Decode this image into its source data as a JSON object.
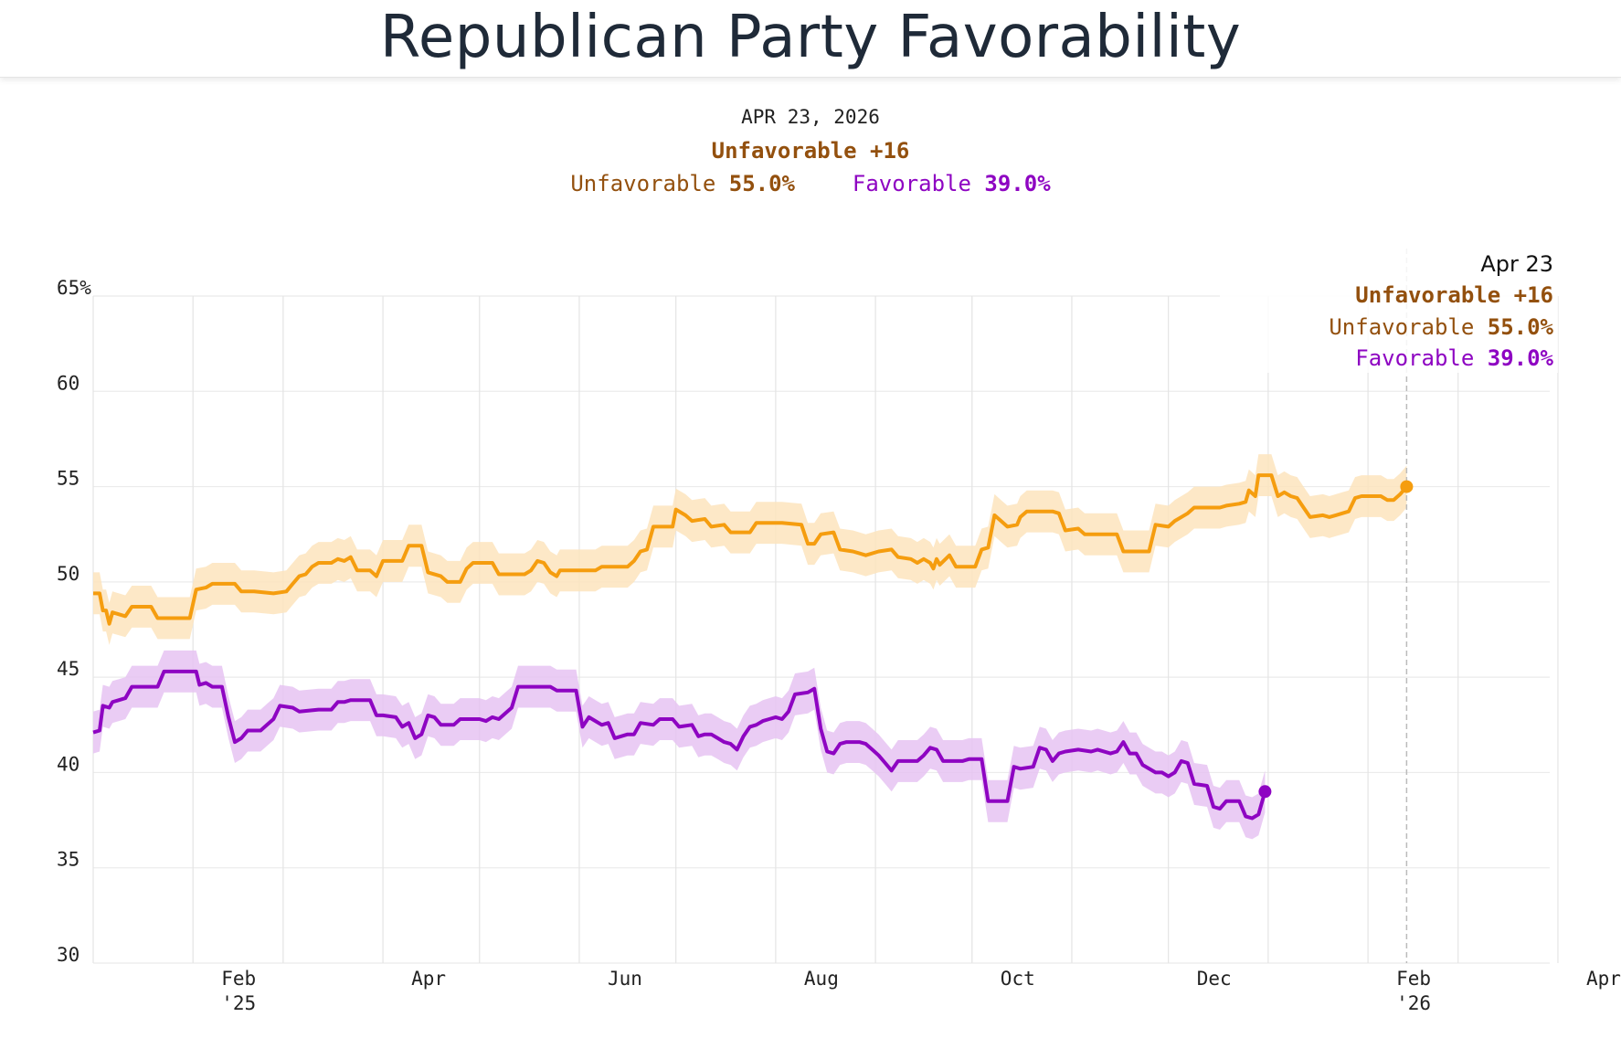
{
  "title": "Republican Party Favorability",
  "summary": {
    "date": "APR 23, 2026",
    "margin": "Unfavorable +16",
    "unfav_label": "Unfavorable",
    "unfav_value": "55.0%",
    "fav_label": "Favorable",
    "fav_value": "39.0%"
  },
  "tooltip": {
    "date": "Apr 23",
    "margin": "Unfavorable +16",
    "unfav_label": "Unfavorable",
    "unfav_value": "55.0%",
    "fav_label": "Favorable",
    "fav_value": "39.0%"
  },
  "colors": {
    "unfavorable": "#f59d0f",
    "unfavorable_band": "#fde4bd",
    "unfavorable_text": "#93500e",
    "favorable": "#8e05c2",
    "favorable_band": "#e6c3f2",
    "favorable_text": "#8e05c2"
  },
  "chart_data": {
    "type": "line",
    "title": "Republican Party Favorability",
    "ylim": [
      30,
      65
    ],
    "yticks": [
      30,
      35,
      40,
      45,
      50,
      55,
      60,
      65
    ],
    "ytick_labels": [
      "30",
      "35",
      "40",
      "45",
      "50",
      "55",
      "60",
      "65%"
    ],
    "x_start": "2025-01-01",
    "x_end": "2026-04-23",
    "month_ticks": [
      {
        "label": "Feb",
        "sub": "'25",
        "day": 31
      },
      {
        "label": "Apr",
        "sub": "",
        "day": 90
      },
      {
        "label": "Jun",
        "sub": "",
        "day": 151
      },
      {
        "label": "Aug",
        "sub": "",
        "day": 212
      },
      {
        "label": "Oct",
        "sub": "",
        "day": 273
      },
      {
        "label": "Dec",
        "sub": "",
        "day": 334
      },
      {
        "label": "Feb",
        "sub": "'26",
        "day": 396
      },
      {
        "label": "Apr",
        "sub": "",
        "day": 455
      }
    ],
    "grid_days": [
      0,
      31,
      59,
      90,
      120,
      151,
      181,
      212,
      243,
      273,
      304,
      334,
      365,
      396,
      424,
      455
    ],
    "band_halfwidth": 1.1,
    "series": [
      {
        "name": "Unfavorable",
        "points": [
          [
            0,
            49.4
          ],
          [
            2,
            49.4
          ],
          [
            3,
            48.5
          ],
          [
            4,
            48.5
          ],
          [
            5,
            47.8
          ],
          [
            6,
            48.4
          ],
          [
            8,
            48.3
          ],
          [
            10,
            48.2
          ],
          [
            12,
            48.7
          ],
          [
            18,
            48.7
          ],
          [
            20,
            48.1
          ],
          [
            30,
            48.1
          ],
          [
            32,
            49.6
          ],
          [
            35,
            49.7
          ],
          [
            37,
            49.9
          ],
          [
            44,
            49.9
          ],
          [
            46,
            49.5
          ],
          [
            50,
            49.5
          ],
          [
            56,
            49.4
          ],
          [
            60,
            49.5
          ],
          [
            62,
            49.9
          ],
          [
            64,
            50.3
          ],
          [
            66,
            50.4
          ],
          [
            68,
            50.8
          ],
          [
            70,
            51.0
          ],
          [
            72,
            51.0
          ],
          [
            74,
            51.0
          ],
          [
            76,
            51.2
          ],
          [
            78,
            51.1
          ],
          [
            80,
            51.3
          ],
          [
            82,
            50.6
          ],
          [
            86,
            50.6
          ],
          [
            88,
            50.3
          ],
          [
            90,
            51.1
          ],
          [
            96,
            51.1
          ],
          [
            98,
            51.9
          ],
          [
            102,
            51.9
          ],
          [
            104,
            50.5
          ],
          [
            108,
            50.3
          ],
          [
            110,
            50.0
          ],
          [
            114,
            50.0
          ],
          [
            116,
            50.7
          ],
          [
            118,
            51.0
          ],
          [
            124,
            51.0
          ],
          [
            126,
            50.4
          ],
          [
            134,
            50.4
          ],
          [
            136,
            50.6
          ],
          [
            138,
            51.1
          ],
          [
            140,
            51.0
          ],
          [
            142,
            50.5
          ],
          [
            144,
            50.3
          ],
          [
            145,
            50.6
          ],
          [
            148,
            50.6
          ],
          [
            156,
            50.6
          ],
          [
            158,
            50.8
          ],
          [
            166,
            50.8
          ],
          [
            168,
            51.1
          ],
          [
            170,
            51.6
          ],
          [
            172,
            51.7
          ],
          [
            174,
            52.9
          ],
          [
            180,
            52.9
          ],
          [
            181,
            53.8
          ],
          [
            184,
            53.5
          ],
          [
            186,
            53.2
          ],
          [
            190,
            53.3
          ],
          [
            192,
            52.9
          ],
          [
            196,
            53.0
          ],
          [
            198,
            52.6
          ],
          [
            204,
            52.6
          ],
          [
            206,
            53.1
          ],
          [
            214,
            53.1
          ],
          [
            220,
            53.0
          ],
          [
            222,
            52.0
          ],
          [
            224,
            52.0
          ],
          [
            226,
            52.5
          ],
          [
            230,
            52.6
          ],
          [
            232,
            51.7
          ],
          [
            236,
            51.6
          ],
          [
            238,
            51.5
          ],
          [
            240,
            51.4
          ],
          [
            244,
            51.6
          ],
          [
            248,
            51.7
          ],
          [
            250,
            51.3
          ],
          [
            254,
            51.2
          ],
          [
            256,
            51.0
          ],
          [
            258,
            51.2
          ],
          [
            260,
            51.0
          ],
          [
            261,
            50.7
          ],
          [
            262,
            51.2
          ],
          [
            263,
            50.9
          ],
          [
            266,
            51.4
          ],
          [
            268,
            50.8
          ],
          [
            274,
            50.8
          ],
          [
            276,
            51.7
          ],
          [
            278,
            51.8
          ],
          [
            280,
            53.5
          ],
          [
            282,
            53.2
          ],
          [
            284,
            52.9
          ],
          [
            287,
            53.0
          ],
          [
            288,
            53.4
          ],
          [
            290,
            53.7
          ],
          [
            298,
            53.7
          ],
          [
            300,
            53.6
          ],
          [
            302,
            52.7
          ],
          [
            306,
            52.8
          ],
          [
            308,
            52.5
          ],
          [
            318,
            52.5
          ],
          [
            320,
            51.6
          ],
          [
            328,
            51.6
          ],
          [
            330,
            53.0
          ],
          [
            334,
            52.9
          ],
          [
            336,
            53.2
          ],
          [
            340,
            53.6
          ],
          [
            342,
            53.9
          ],
          [
            346,
            53.9
          ],
          [
            350,
            53.9
          ],
          [
            352,
            54.0
          ],
          [
            356,
            54.1
          ],
          [
            358,
            54.2
          ],
          [
            359,
            54.8
          ],
          [
            361,
            54.5
          ],
          [
            362,
            55.6
          ],
          [
            366,
            55.6
          ],
          [
            368,
            54.5
          ],
          [
            370,
            54.7
          ],
          [
            372,
            54.5
          ],
          [
            374,
            54.4
          ],
          [
            376,
            53.9
          ],
          [
            378,
            53.4
          ],
          [
            382,
            53.5
          ],
          [
            384,
            53.4
          ],
          [
            386,
            53.5
          ],
          [
            388,
            53.6
          ],
          [
            390,
            53.7
          ],
          [
            392,
            54.4
          ],
          [
            394,
            54.5
          ],
          [
            398,
            54.5
          ],
          [
            400,
            54.5
          ],
          [
            402,
            54.3
          ],
          [
            404,
            54.3
          ],
          [
            406,
            54.6
          ],
          [
            408,
            55.0
          ]
        ]
      },
      {
        "name": "Favorable",
        "points": [
          [
            0,
            42.1
          ],
          [
            2,
            42.2
          ],
          [
            3,
            43.5
          ],
          [
            5,
            43.4
          ],
          [
            6,
            43.7
          ],
          [
            8,
            43.8
          ],
          [
            10,
            43.9
          ],
          [
            12,
            44.5
          ],
          [
            20,
            44.5
          ],
          [
            22,
            45.3
          ],
          [
            32,
            45.3
          ],
          [
            33,
            44.6
          ],
          [
            35,
            44.7
          ],
          [
            37,
            44.5
          ],
          [
            40,
            44.5
          ],
          [
            42,
            42.9
          ],
          [
            44,
            41.6
          ],
          [
            46,
            41.8
          ],
          [
            48,
            42.2
          ],
          [
            52,
            42.2
          ],
          [
            54,
            42.5
          ],
          [
            56,
            42.8
          ],
          [
            58,
            43.5
          ],
          [
            62,
            43.4
          ],
          [
            64,
            43.2
          ],
          [
            70,
            43.3
          ],
          [
            74,
            43.3
          ],
          [
            76,
            43.7
          ],
          [
            78,
            43.7
          ],
          [
            80,
            43.8
          ],
          [
            86,
            43.8
          ],
          [
            88,
            43.0
          ],
          [
            90,
            43.0
          ],
          [
            94,
            42.9
          ],
          [
            96,
            42.4
          ],
          [
            98,
            42.6
          ],
          [
            100,
            41.8
          ],
          [
            102,
            42.0
          ],
          [
            104,
            43.0
          ],
          [
            106,
            42.9
          ],
          [
            108,
            42.5
          ],
          [
            112,
            42.5
          ],
          [
            114,
            42.8
          ],
          [
            120,
            42.8
          ],
          [
            122,
            42.7
          ],
          [
            124,
            42.9
          ],
          [
            126,
            42.8
          ],
          [
            130,
            43.4
          ],
          [
            132,
            44.5
          ],
          [
            142,
            44.5
          ],
          [
            144,
            44.3
          ],
          [
            150,
            44.3
          ],
          [
            152,
            42.4
          ],
          [
            154,
            42.9
          ],
          [
            156,
            42.7
          ],
          [
            158,
            42.5
          ],
          [
            160,
            42.6
          ],
          [
            162,
            41.8
          ],
          [
            164,
            41.9
          ],
          [
            166,
            42.0
          ],
          [
            168,
            42.0
          ],
          [
            170,
            42.6
          ],
          [
            174,
            42.5
          ],
          [
            176,
            42.8
          ],
          [
            180,
            42.8
          ],
          [
            182,
            42.4
          ],
          [
            186,
            42.5
          ],
          [
            188,
            41.9
          ],
          [
            190,
            42.0
          ],
          [
            192,
            42.0
          ],
          [
            194,
            41.8
          ],
          [
            196,
            41.6
          ],
          [
            198,
            41.5
          ],
          [
            200,
            41.2
          ],
          [
            202,
            41.9
          ],
          [
            204,
            42.4
          ],
          [
            206,
            42.5
          ],
          [
            208,
            42.7
          ],
          [
            210,
            42.8
          ],
          [
            212,
            42.9
          ],
          [
            214,
            42.8
          ],
          [
            216,
            43.2
          ],
          [
            218,
            44.1
          ],
          [
            222,
            44.2
          ],
          [
            224,
            44.4
          ],
          [
            226,
            42.3
          ],
          [
            228,
            41.1
          ],
          [
            230,
            41.0
          ],
          [
            232,
            41.5
          ],
          [
            234,
            41.6
          ],
          [
            238,
            41.6
          ],
          [
            240,
            41.5
          ],
          [
            242,
            41.2
          ],
          [
            244,
            40.9
          ],
          [
            246,
            40.5
          ],
          [
            248,
            40.1
          ],
          [
            250,
            40.6
          ],
          [
            256,
            40.6
          ],
          [
            258,
            40.9
          ],
          [
            260,
            41.3
          ],
          [
            262,
            41.2
          ],
          [
            264,
            40.6
          ],
          [
            270,
            40.6
          ],
          [
            272,
            40.7
          ],
          [
            276,
            40.7
          ],
          [
            278,
            38.5
          ],
          [
            284,
            38.5
          ],
          [
            286,
            40.3
          ],
          [
            288,
            40.2
          ],
          [
            292,
            40.3
          ],
          [
            294,
            41.3
          ],
          [
            296,
            41.2
          ],
          [
            298,
            40.6
          ],
          [
            300,
            41.0
          ],
          [
            302,
            41.1
          ],
          [
            306,
            41.2
          ],
          [
            310,
            41.1
          ],
          [
            312,
            41.2
          ],
          [
            316,
            41.0
          ],
          [
            318,
            41.1
          ],
          [
            320,
            41.6
          ],
          [
            322,
            41.0
          ],
          [
            324,
            41.0
          ],
          [
            326,
            40.4
          ],
          [
            330,
            40.0
          ],
          [
            332,
            40.0
          ],
          [
            334,
            39.8
          ],
          [
            336,
            40.0
          ],
          [
            338,
            40.6
          ],
          [
            340,
            40.5
          ],
          [
            342,
            39.4
          ],
          [
            346,
            39.3
          ],
          [
            348,
            38.2
          ],
          [
            350,
            38.1
          ],
          [
            352,
            38.5
          ],
          [
            356,
            38.5
          ],
          [
            358,
            37.7
          ],
          [
            360,
            37.6
          ],
          [
            362,
            37.8
          ],
          [
            364,
            39.0
          ]
        ]
      }
    ]
  }
}
